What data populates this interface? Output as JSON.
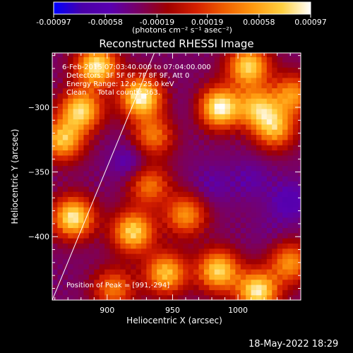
{
  "chart_data": {
    "type": "heatmap",
    "title": "Reconstructed RHESSI Image",
    "xlabel": "Heliocentric X (arcsec)",
    "ylabel": "Heliocentric Y (arcsec)",
    "xlim": [
      858,
      1048
    ],
    "ylim": [
      -449,
      -258
    ],
    "x_ticks": [
      900,
      950,
      1000
    ],
    "x_tick_labels": [
      "900",
      "950",
      "1000"
    ],
    "y_ticks": [
      -300,
      -350,
      -400
    ],
    "y_tick_labels": [
      "−300",
      "−350",
      "−400"
    ],
    "colorbar": {
      "min": -0.00097,
      "max": 0.00097,
      "ticks": [
        -0.00097,
        -0.00058,
        -0.00019,
        0.00019,
        0.00058,
        0.00097
      ],
      "tick_labels": [
        "-0.00097",
        "-0.00058",
        "-0.00019",
        "0.00019",
        "0.00058",
        "0.00097"
      ],
      "unit_label": "(photons cm⁻² s⁻¹ asec⁻²)",
      "palette": [
        "#0000ff",
        "#4a00a8",
        "#5a00b0",
        "#7a0060",
        "#a00000",
        "#d52000",
        "#f06000",
        "#ff9a10",
        "#ffd040",
        "#ffffff"
      ]
    },
    "peak": {
      "x": 991,
      "y": -294
    },
    "limb_line": {
      "x": [
        858,
        936
      ],
      "y": [
        -449,
        -258
      ]
    },
    "pixel_size_arcsec": 4,
    "hotspots": [
      {
        "x": 892,
        "y": -268,
        "value": 0.0009
      },
      {
        "x": 926,
        "y": -292,
        "value": 0.00095
      },
      {
        "x": 986,
        "y": -300,
        "value": 0.00097
      },
      {
        "x": 1008,
        "y": -268,
        "value": 0.0008
      },
      {
        "x": 880,
        "y": -302,
        "value": 0.0008
      },
      {
        "x": 866,
        "y": -325,
        "value": 0.0007
      },
      {
        "x": 935,
        "y": -322,
        "value": 0.0004
      },
      {
        "x": 1028,
        "y": -316,
        "value": 0.0006
      },
      {
        "x": 1015,
        "y": -300,
        "value": 0.0006
      },
      {
        "x": 1042,
        "y": -290,
        "value": 0.0005
      },
      {
        "x": 874,
        "y": -385,
        "value": 0.0009
      },
      {
        "x": 920,
        "y": -396,
        "value": 0.0008
      },
      {
        "x": 945,
        "y": -428,
        "value": 0.0007
      },
      {
        "x": 985,
        "y": -426,
        "value": 0.0008
      },
      {
        "x": 1015,
        "y": -442,
        "value": 0.0009
      },
      {
        "x": 960,
        "y": -383,
        "value": 0.0005
      },
      {
        "x": 932,
        "y": -360,
        "value": 0.0004
      },
      {
        "x": 1040,
        "y": -420,
        "value": 0.0005
      },
      {
        "x": 905,
        "y": -440,
        "value": 0.0004
      }
    ],
    "coldspots": [
      {
        "x": 918,
        "y": -342,
        "value": -0.0006
      },
      {
        "x": 1010,
        "y": -355,
        "value": -0.0005
      },
      {
        "x": 1040,
        "y": -372,
        "value": -0.0006
      },
      {
        "x": 980,
        "y": -360,
        "value": -0.0005
      },
      {
        "x": 965,
        "y": -300,
        "value": -0.0004
      },
      {
        "x": 1025,
        "y": -395,
        "value": -0.0004
      }
    ]
  },
  "overlay": {
    "time_range": "6-Feb-2015 07:03:40.000 to 07:04:00.000",
    "detectors": "Detectors: 3F 5F 6F 7F 8F 9F, Att 0",
    "energy_range": "Energy Range: 12.0 - 25.0 keV",
    "clean_counts": "Clean     Total counts: 363.",
    "peak_text": "Position of Peak = [991,-294]"
  },
  "timestamp": "18-May-2022 18:29"
}
